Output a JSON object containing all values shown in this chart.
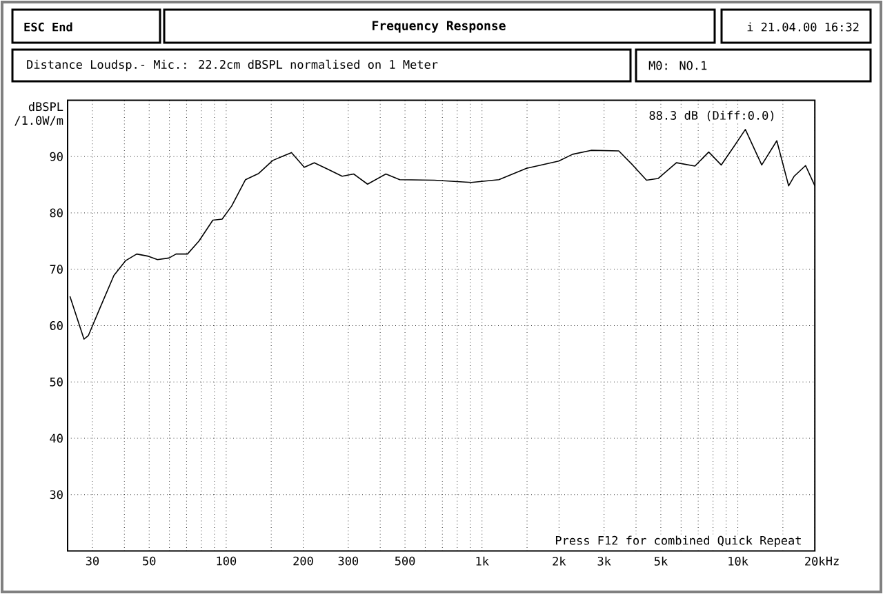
{
  "chart_data": {
    "type": "line",
    "title": "Frequency Response",
    "subtitle": "Distance Loudsp.- Mic.: 22.2cm dBSPL normalised on 1 Meter",
    "ylabel": "dBSPL /1.0W/m",
    "annotations": [
      "ESC End",
      "i 21.04.00 16:32",
      "M0: NO.1",
      "88.3 dB (Diff:0.0)",
      "Press F12 for combined Quick Repeat"
    ],
    "x": [
      24.5,
      27.8,
      28.9,
      32.1,
      36.4,
      40.4,
      44.7,
      49.7,
      53.9,
      59.8,
      63.7,
      70.6,
      78.3,
      88.7,
      96.4,
      105,
      119,
      134,
      152,
      165,
      180,
      202,
      221,
      251,
      284,
      315,
      357,
      421,
      477,
      651,
      908,
      1164,
      1493,
      1995,
      2261,
      2670,
      3425,
      3880,
      4396,
      4877,
      5754,
      6797,
      7697,
      8610,
      9660,
      10700,
      12400,
      14200,
      15800,
      16600,
      18400,
      20000
    ],
    "series": [
      {
        "color": "#000000",
        "values": [
          65.2,
          57.6,
          58.2,
          63.1,
          68.9,
          71.5,
          72.7,
          72.3,
          71.7,
          72.0,
          72.7,
          72.7,
          75.0,
          78.7,
          78.9,
          81.2,
          85.9,
          87.0,
          89.3,
          90.0,
          90.7,
          88.1,
          88.9,
          87.7,
          86.5,
          86.9,
          85.1,
          86.9,
          85.9,
          85.8,
          85.4,
          85.9,
          87.9,
          89.2,
          90.4,
          91.1,
          91.0,
          88.5,
          85.8,
          86.1,
          88.9,
          88.3,
          90.8,
          88.5,
          91.8,
          94.8,
          88.5,
          92.8,
          84.8,
          86.5,
          88.4,
          84.8
        ]
      }
    ],
    "log": "x",
    "grid": true,
    "line_style": "solid",
    "xlim": [
      24,
      20000
    ],
    "ylim": [
      20,
      100
    ],
    "xticks": [
      30,
      {
        "value": 40,
        "label": null
      },
      50,
      {
        "value": 60,
        "label": null
      },
      {
        "value": 70,
        "label": null
      },
      {
        "value": 80,
        "label": null
      },
      {
        "value": 90,
        "label": null
      },
      100,
      {
        "value": 150,
        "label": null
      },
      200,
      300,
      {
        "value": 400,
        "label": null
      },
      500,
      {
        "value": 600,
        "label": null
      },
      {
        "value": 700,
        "label": null
      },
      {
        "value": 800,
        "label": null
      },
      {
        "value": 900,
        "label": null
      },
      {
        "value": 1000,
        "label": "1k"
      },
      {
        "value": 1500,
        "label": null
      },
      {
        "value": 2000,
        "label": "2k"
      },
      {
        "value": 3000,
        "label": "3k"
      },
      {
        "value": 4000,
        "label": null
      },
      {
        "value": 5000,
        "label": "5k"
      },
      {
        "value": 6000,
        "label": null
      },
      {
        "value": 7000,
        "label": null
      },
      {
        "value": 8000,
        "label": null
      },
      {
        "value": 9000,
        "label": null
      },
      {
        "value": 10000,
        "label": "10k"
      },
      {
        "value": 15000,
        "label": null
      },
      {
        "value": 20000,
        "label": "20k"
      }
    ],
    "xlabel": "Hz",
    "yticks": [
      30,
      40,
      50,
      60,
      70,
      80,
      90
    ]
  }
}
